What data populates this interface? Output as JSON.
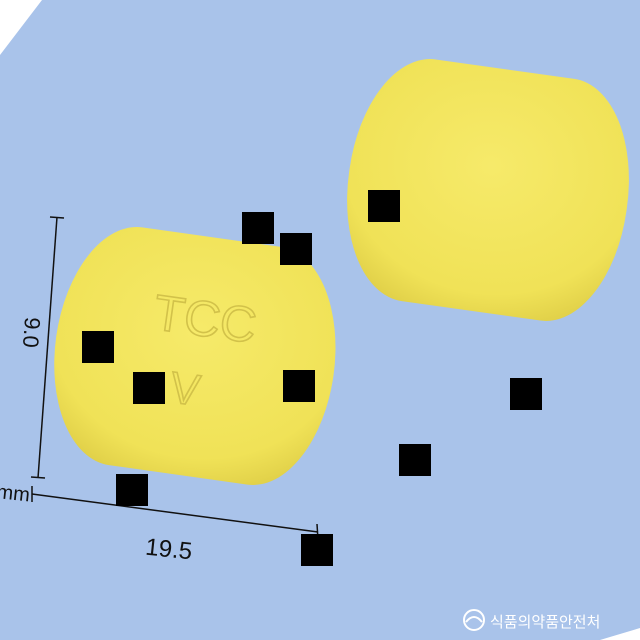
{
  "colors": {
    "background": "#a9c3ea",
    "pill": "#f0e35a",
    "pill_edge": "#d8c84a",
    "mask": "#000000",
    "dimension_line": "#111111"
  },
  "pill_front": {
    "imprint_line1": "TCC",
    "imprint_line2": "V"
  },
  "dimensions": {
    "width": "9.0",
    "length": "19.5",
    "unit": "mm"
  },
  "watermark": {
    "text": "식품의약품안전처",
    "icon": "government-emblem-icon"
  }
}
